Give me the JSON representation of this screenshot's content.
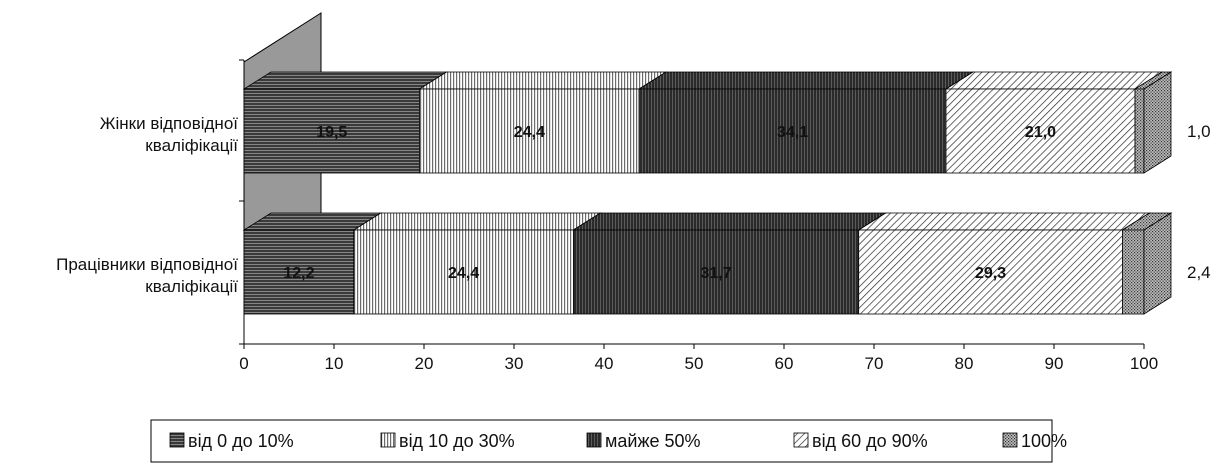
{
  "chart_data": {
    "type": "bar",
    "orientation": "horizontal",
    "stacked": true,
    "three_d": true,
    "categories": [
      [
        "Жінки відповідної",
        "кваліфікації"
      ],
      [
        "Працівники відповідної",
        "кваліфікації"
      ]
    ],
    "series": [
      {
        "name": "від 0 до 10%",
        "values": [
          19.5,
          12.2
        ],
        "labels": [
          "19,5",
          "12,2"
        ],
        "pattern": "horizontal-lines"
      },
      {
        "name": "від 10 до 30%",
        "values": [
          24.4,
          24.4
        ],
        "labels": [
          "24,4",
          "24,4"
        ],
        "pattern": "vertical-lines"
      },
      {
        "name": "майже 50%",
        "values": [
          34.1,
          31.7
        ],
        "labels": [
          "34,1",
          "31,7"
        ],
        "pattern": "dark-vertical"
      },
      {
        "name": "від 60 до 90%",
        "values": [
          21.0,
          29.3
        ],
        "labels": [
          "21,0",
          "29,3"
        ],
        "pattern": "diagonal"
      },
      {
        "name": "100%",
        "values": [
          1.0,
          2.4
        ],
        "labels": [
          "1,0",
          "2,4"
        ],
        "pattern": "dots"
      }
    ],
    "xlim": [
      0,
      100
    ],
    "x_ticks": [
      0,
      10,
      20,
      30,
      40,
      50,
      60,
      70,
      80,
      90,
      100
    ],
    "x_tick_labels": [
      "0",
      "10",
      "20",
      "30",
      "40",
      "50",
      "60",
      "70",
      "80",
      "90",
      "100"
    ],
    "title": "",
    "xlabel": "",
    "ylabel": "",
    "grid": false,
    "legend": "bottom",
    "colors": {
      "text": "#111111",
      "wall": "#999999",
      "outline": "#000000"
    }
  }
}
